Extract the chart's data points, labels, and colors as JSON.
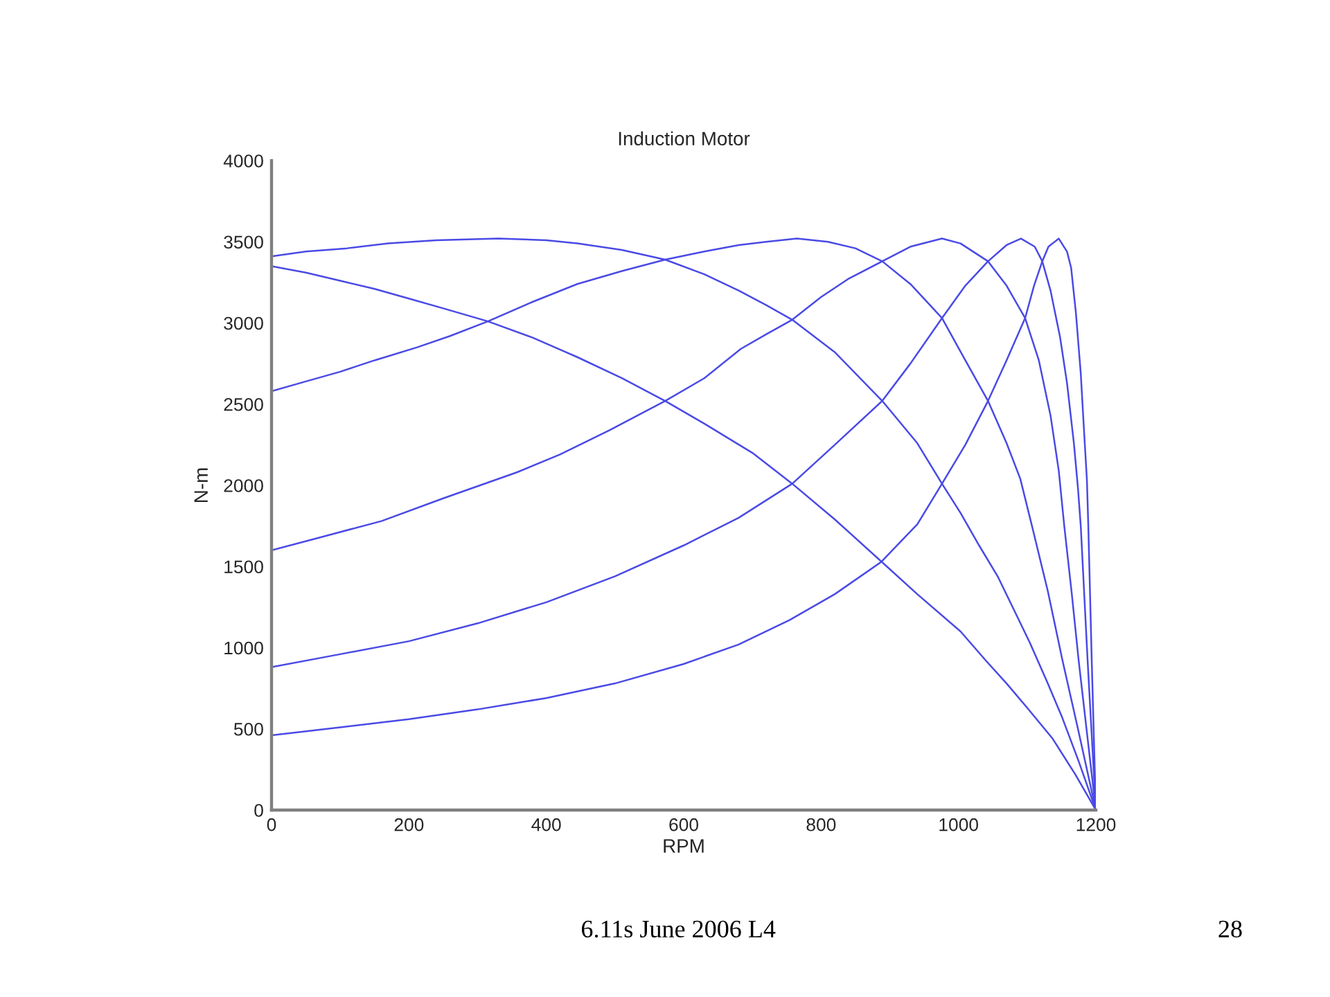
{
  "chart_data": {
    "type": "line",
    "title": "Induction Motor",
    "xlabel": "RPM",
    "ylabel": "N-m",
    "annotations": [
      "6.11s June 2006 L4",
      "28"
    ],
    "xlim": [
      0,
      1200
    ],
    "ylim": [
      0,
      4000
    ],
    "xticks": [
      0,
      200,
      400,
      600,
      800,
      1000,
      1200
    ],
    "yticks": [
      0,
      500,
      1000,
      1500,
      2000,
      2500,
      3000,
      3500,
      4000
    ],
    "series": [
      {
        "color": "#4a4ae6",
        "x": [
          0,
          50,
          100,
          150,
          200,
          250,
          315,
          380,
          445,
          510,
          573,
          630,
          700,
          758,
          820,
          888,
          940,
          1003,
          1040,
          1070,
          1100,
          1137,
          1170,
          1200
        ],
        "values": [
          3350,
          3310,
          3260,
          3210,
          3150,
          3090,
          3010,
          2910,
          2790,
          2660,
          2520,
          2380,
          2200,
          2010,
          1790,
          1530,
          1330,
          1100,
          920,
          780,
          630,
          440,
          220,
          0
        ]
      },
      {
        "color": "#4a4ae6",
        "x": [
          0,
          50,
          110,
          170,
          240,
          330,
          400,
          445,
          510,
          573,
          630,
          680,
          720,
          758,
          820,
          889,
          940,
          976,
          1003,
          1030,
          1057,
          1080,
          1104,
          1130,
          1151,
          1175,
          1200
        ],
        "values": [
          3410,
          3440,
          3460,
          3490,
          3510,
          3520,
          3510,
          3490,
          3450,
          3390,
          3300,
          3200,
          3110,
          3020,
          2820,
          2520,
          2260,
          2010,
          1830,
          1630,
          1440,
          1240,
          1030,
          780,
          570,
          300,
          0
        ]
      },
      {
        "color": "#4a4ae6",
        "x": [
          0,
          50,
          100,
          150,
          212,
          260,
          315,
          380,
          445,
          510,
          573,
          630,
          680,
          720,
          765,
          810,
          850,
          889,
          930,
          976,
          1010,
          1043,
          1070,
          1090,
          1107,
          1130,
          1151,
          1175,
          1200
        ],
        "values": [
          2580,
          2640,
          2700,
          2770,
          2850,
          2920,
          3010,
          3130,
          3240,
          3320,
          3390,
          3440,
          3480,
          3500,
          3520,
          3500,
          3460,
          3380,
          3240,
          3030,
          2770,
          2520,
          2260,
          2040,
          1750,
          1350,
          930,
          480,
          0
        ]
      },
      {
        "color": "#4a4ae6",
        "x": [
          0,
          80,
          160,
          250,
          357,
          420,
          492,
          573,
          630,
          683,
          720,
          758,
          800,
          839,
          889,
          930,
          976,
          1003,
          1043,
          1070,
          1097,
          1117,
          1134,
          1146,
          1154,
          1165,
          1175,
          1188,
          1200
        ],
        "values": [
          1600,
          1690,
          1780,
          1920,
          2080,
          2190,
          2340,
          2520,
          2660,
          2840,
          2930,
          3020,
          3160,
          3270,
          3380,
          3470,
          3520,
          3490,
          3380,
          3230,
          3030,
          2770,
          2430,
          2090,
          1750,
          1330,
          920,
          440,
          0
        ]
      },
      {
        "color": "#4a4ae6",
        "x": [
          0,
          100,
          200,
          300,
          400,
          500,
          600,
          680,
          758,
          820,
          889,
          930,
          976,
          1010,
          1043,
          1070,
          1091,
          1111,
          1122,
          1134,
          1148,
          1158,
          1168,
          1174,
          1178,
          1188,
          1200
        ],
        "values": [
          880,
          960,
          1040,
          1150,
          1280,
          1440,
          1630,
          1800,
          2010,
          2250,
          2520,
          2750,
          3030,
          3230,
          3380,
          3480,
          3520,
          3470,
          3380,
          3200,
          2910,
          2630,
          2260,
          1980,
          1750,
          920,
          0
        ]
      },
      {
        "color": "#4a4ae6",
        "x": [
          0,
          100,
          200,
          300,
          400,
          500,
          600,
          680,
          754,
          820,
          888,
          940,
          976,
          1010,
          1043,
          1070,
          1097,
          1110,
          1122,
          1131,
          1146,
          1158,
          1164,
          1171,
          1178,
          1183,
          1187,
          1189,
          1194,
          1200
        ],
        "values": [
          460,
          510,
          560,
          620,
          690,
          780,
          900,
          1020,
          1170,
          1330,
          1530,
          1760,
          2010,
          2250,
          2520,
          2770,
          3030,
          3230,
          3380,
          3470,
          3520,
          3440,
          3340,
          3060,
          2690,
          2320,
          2030,
          1750,
          920,
          0
        ]
      }
    ]
  }
}
